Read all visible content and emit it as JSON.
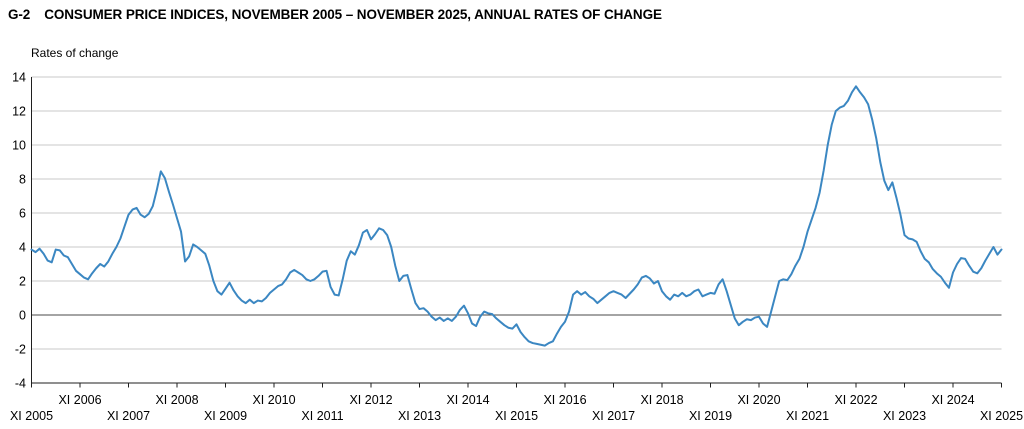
{
  "header": {
    "figure_code": "G-2",
    "title": "CONSUMER PRICE INDICES, NOVEMBER 2005 – NOVEMBER 2025, ANNUAL RATES OF CHANGE"
  },
  "chart": {
    "y_axis_label": "Rates of change"
  },
  "colors": {
    "line": "#3b87c2",
    "grid": "#c8c8c8",
    "zero_line": "#4a4a4a",
    "axis": "#1f1f1f"
  },
  "chart_data": {
    "type": "line",
    "title": "G-2 CONSUMER PRICE INDICES, NOVEMBER 2005 – NOVEMBER 2025, ANNUAL RATES OF CHANGE",
    "ylabel": "Rates of change",
    "xlabel": "",
    "ylim": [
      -4,
      14
    ],
    "yticks": [
      14,
      12,
      10,
      8,
      6,
      4,
      2,
      0,
      -2,
      -4
    ],
    "grid": true,
    "zero_line": true,
    "legend_position": "none",
    "xtick_labels": [
      "XI 2005",
      "XI 2006",
      "XI 2007",
      "XI 2008",
      "XI 2009",
      "XI 2010",
      "XI 2011",
      "XI 2012",
      "XI 2013",
      "XI 2014",
      "XI 2015",
      "XI 2016",
      "XI 2017",
      "XI 2018",
      "XI 2019",
      "XI 2020",
      "XI 2021",
      "XI 2022",
      "XI 2023",
      "XI 2024",
      "XI 2025"
    ],
    "series": [
      {
        "name": "Annual rate of change (%)",
        "start": "XI 2005",
        "end": "XI 2025",
        "frequency": "monthly",
        "values": [
          3.85,
          3.7,
          3.9,
          3.6,
          3.2,
          3.1,
          3.85,
          3.8,
          3.5,
          3.4,
          3.0,
          2.6,
          2.4,
          2.2,
          2.1,
          2.45,
          2.75,
          3.0,
          2.85,
          3.15,
          3.6,
          4.0,
          4.5,
          5.2,
          5.9,
          6.2,
          6.3,
          5.9,
          5.75,
          5.95,
          6.4,
          7.35,
          8.45,
          8.05,
          7.25,
          6.5,
          5.7,
          4.9,
          3.15,
          3.45,
          4.15,
          4.0,
          3.8,
          3.6,
          2.9,
          2.0,
          1.4,
          1.2,
          1.55,
          1.9,
          1.45,
          1.1,
          0.85,
          0.7,
          0.9,
          0.7,
          0.85,
          0.8,
          1.0,
          1.3,
          1.5,
          1.7,
          1.8,
          2.1,
          2.5,
          2.65,
          2.5,
          2.35,
          2.1,
          2.0,
          2.1,
          2.3,
          2.55,
          2.6,
          1.65,
          1.2,
          1.15,
          2.1,
          3.2,
          3.75,
          3.55,
          4.1,
          4.85,
          5.0,
          4.45,
          4.75,
          5.1,
          5.0,
          4.7,
          4.0,
          2.9,
          2.0,
          2.3,
          2.35,
          1.5,
          0.7,
          0.35,
          0.4,
          0.2,
          -0.1,
          -0.3,
          -0.15,
          -0.35,
          -0.2,
          -0.35,
          -0.1,
          0.3,
          0.55,
          0.1,
          -0.5,
          -0.65,
          -0.1,
          0.2,
          0.1,
          0.05,
          -0.2,
          -0.4,
          -0.6,
          -0.75,
          -0.8,
          -0.55,
          -1.0,
          -1.3,
          -1.55,
          -1.65,
          -1.7,
          -1.75,
          -1.8,
          -1.65,
          -1.55,
          -1.1,
          -0.7,
          -0.4,
          0.2,
          1.2,
          1.4,
          1.2,
          1.35,
          1.1,
          0.95,
          0.7,
          0.9,
          1.1,
          1.3,
          1.4,
          1.3,
          1.2,
          1.0,
          1.25,
          1.5,
          1.8,
          2.2,
          2.3,
          2.15,
          1.85,
          2.0,
          1.4,
          1.1,
          0.9,
          1.2,
          1.1,
          1.3,
          1.1,
          1.2,
          1.4,
          1.5,
          1.1,
          1.2,
          1.3,
          1.25,
          1.8,
          2.1,
          1.4,
          0.6,
          -0.2,
          -0.6,
          -0.4,
          -0.25,
          -0.3,
          -0.15,
          -0.1,
          -0.5,
          -0.7,
          0.2,
          1.1,
          2.0,
          2.1,
          2.05,
          2.4,
          2.9,
          3.3,
          4.0,
          4.9,
          5.6,
          6.3,
          7.2,
          8.5,
          10.0,
          11.2,
          12.0,
          12.2,
          12.3,
          12.6,
          13.1,
          13.45,
          13.1,
          12.8,
          12.4,
          11.5,
          10.4,
          9.0,
          7.9,
          7.35,
          7.8,
          6.9,
          5.9,
          4.7,
          4.5,
          4.45,
          4.3,
          3.75,
          3.3,
          3.1,
          2.7,
          2.45,
          2.25,
          1.9,
          1.6,
          2.5,
          3.0,
          3.35,
          3.3,
          2.9,
          2.55,
          2.45,
          2.75,
          3.2,
          3.6,
          4.0,
          3.55,
          3.85
        ]
      }
    ]
  },
  "layout_note": "staggered x labels: odd years lower row, even years upper row"
}
